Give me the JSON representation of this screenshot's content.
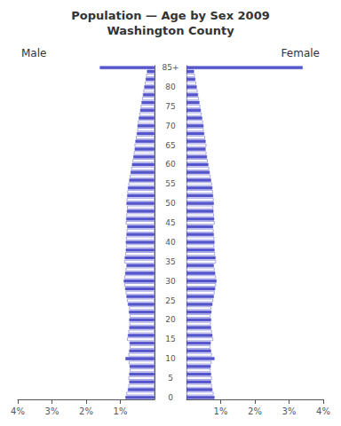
{
  "chart_data": {
    "type": "bar",
    "orientation": "horizontal",
    "title": "Population — Age by Sex 2009",
    "subtitle": "Washington County",
    "categories": [
      "0",
      null,
      null,
      null,
      null,
      "5",
      null,
      null,
      null,
      null,
      "10",
      null,
      null,
      null,
      null,
      "15",
      null,
      null,
      null,
      null,
      "20",
      null,
      null,
      null,
      null,
      "25",
      null,
      null,
      null,
      null,
      "30",
      null,
      null,
      null,
      null,
      "35",
      null,
      null,
      null,
      null,
      "40",
      null,
      null,
      null,
      null,
      "45",
      null,
      null,
      null,
      null,
      "50",
      null,
      null,
      null,
      null,
      "55",
      null,
      null,
      null,
      null,
      "60",
      null,
      null,
      null,
      null,
      "65",
      null,
      null,
      null,
      null,
      "70",
      null,
      null,
      null,
      null,
      "75",
      null,
      null,
      null,
      null,
      "80",
      null,
      null,
      null,
      null,
      "85+"
    ],
    "series": [
      {
        "name": "Male",
        "color": "#5555cc",
        "values": [
          0.85,
          0.82,
          0.78,
          0.76,
          0.74,
          0.76,
          0.74,
          0.72,
          0.73,
          0.75,
          0.85,
          0.76,
          0.74,
          0.72,
          0.73,
          0.8,
          0.78,
          0.76,
          0.74,
          0.73,
          0.74,
          0.72,
          0.75,
          0.74,
          0.78,
          0.8,
          0.82,
          0.84,
          0.86,
          0.88,
          0.9,
          0.88,
          0.86,
          0.84,
          0.82,
          0.88,
          0.87,
          0.85,
          0.84,
          0.83,
          0.84,
          0.83,
          0.82,
          0.81,
          0.8,
          0.84,
          0.83,
          0.82,
          0.81,
          0.8,
          0.82,
          0.81,
          0.8,
          0.79,
          0.78,
          0.76,
          0.74,
          0.72,
          0.7,
          0.68,
          0.66,
          0.64,
          0.62,
          0.6,
          0.58,
          0.58,
          0.56,
          0.54,
          0.52,
          0.5,
          0.5,
          0.48,
          0.46,
          0.44,
          0.42,
          0.4,
          0.38,
          0.36,
          0.34,
          0.32,
          0.3,
          0.28,
          0.26,
          0.24,
          0.22,
          1.6
        ]
      },
      {
        "name": "Female",
        "color": "#5555cc",
        "values": [
          0.82,
          0.79,
          0.76,
          0.74,
          0.72,
          0.74,
          0.72,
          0.7,
          0.71,
          0.73,
          0.82,
          0.74,
          0.72,
          0.7,
          0.71,
          0.78,
          0.76,
          0.74,
          0.72,
          0.71,
          0.72,
          0.7,
          0.73,
          0.72,
          0.76,
          0.78,
          0.8,
          0.82,
          0.84,
          0.86,
          0.88,
          0.86,
          0.84,
          0.82,
          0.8,
          0.86,
          0.85,
          0.83,
          0.82,
          0.81,
          0.82,
          0.81,
          0.8,
          0.79,
          0.78,
          0.82,
          0.81,
          0.8,
          0.79,
          0.78,
          0.8,
          0.79,
          0.78,
          0.77,
          0.76,
          0.74,
          0.72,
          0.7,
          0.68,
          0.66,
          0.64,
          0.62,
          0.6,
          0.58,
          0.56,
          0.58,
          0.56,
          0.54,
          0.52,
          0.5,
          0.5,
          0.48,
          0.46,
          0.44,
          0.42,
          0.4,
          0.38,
          0.36,
          0.34,
          0.32,
          0.3,
          0.28,
          0.26,
          0.24,
          0.22,
          3.4
        ]
      }
    ],
    "xlim": [
      0,
      4
    ],
    "xticks": [
      {
        "value": 1,
        "label": "1%"
      },
      {
        "value": 2,
        "label": "2%"
      },
      {
        "value": 3,
        "label": "3%"
      },
      {
        "value": 4,
        "label": "4%"
      }
    ],
    "grid": false
  }
}
